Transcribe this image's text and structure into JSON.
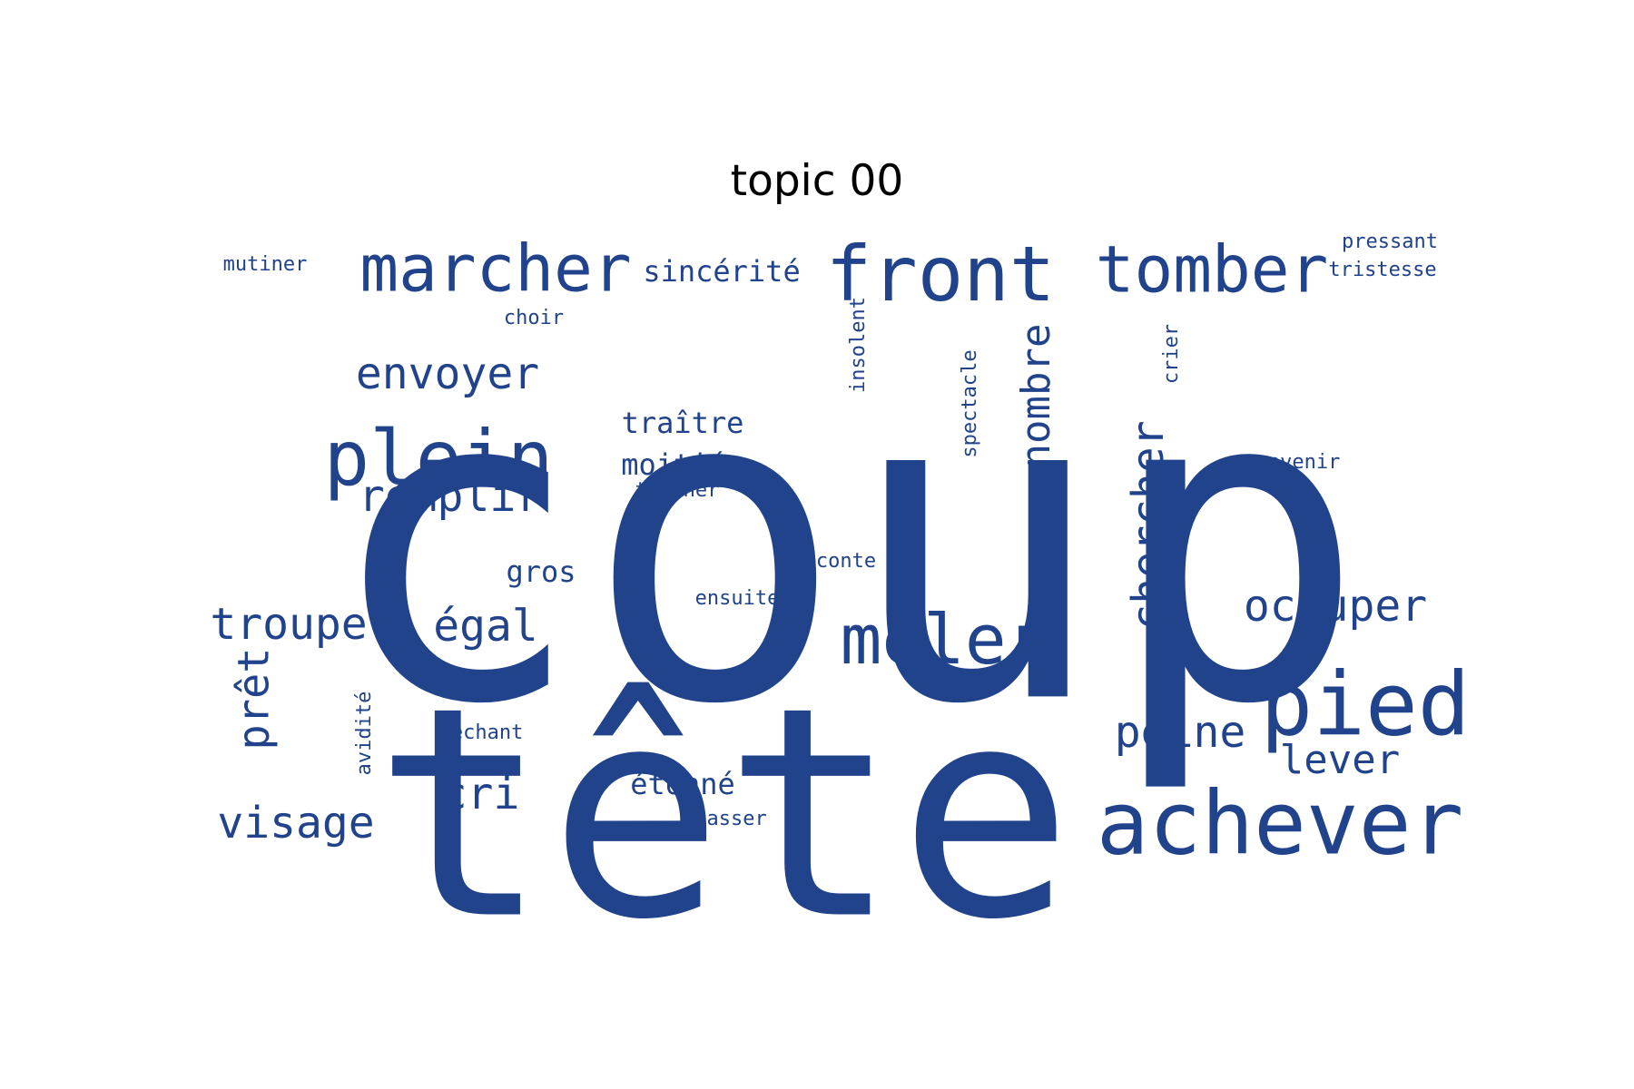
{
  "title": "topic 00",
  "colors": {
    "word": "#21438b",
    "background": "#ffffff",
    "title": "#000000"
  },
  "words": [
    {
      "key": "coup",
      "text": "coup",
      "weight": 1.0
    },
    {
      "key": "tete",
      "text": "tête",
      "weight": 0.92
    },
    {
      "key": "achever",
      "text": "achever",
      "weight": 0.3
    },
    {
      "key": "front",
      "text": "front",
      "weight": 0.27
    },
    {
      "key": "pied",
      "text": "pied",
      "weight": 0.27
    },
    {
      "key": "meler",
      "text": "mêler",
      "weight": 0.25
    },
    {
      "key": "plein",
      "text": "plein",
      "weight": 0.25
    },
    {
      "key": "marcher",
      "text": "marcher",
      "weight": 0.23
    },
    {
      "key": "tomber",
      "text": "tomber",
      "weight": 0.23
    },
    {
      "key": "chercher",
      "text": "chercher",
      "weight": 0.16
    },
    {
      "key": "nombre",
      "text": "nombre",
      "weight": 0.15
    },
    {
      "key": "envoyer",
      "text": "envoyer",
      "weight": 0.15
    },
    {
      "key": "remplir",
      "text": "remplir",
      "weight": 0.15
    },
    {
      "key": "occuper",
      "text": "occuper",
      "weight": 0.15
    },
    {
      "key": "peine",
      "text": "peine",
      "weight": 0.15
    },
    {
      "key": "egal",
      "text": "égal",
      "weight": 0.15
    },
    {
      "key": "troupe",
      "text": "troupe",
      "weight": 0.15
    },
    {
      "key": "visage",
      "text": "visage",
      "weight": 0.15
    },
    {
      "key": "pret",
      "text": "prêt",
      "weight": 0.14
    },
    {
      "key": "cri",
      "text": "cri",
      "weight": 0.14
    },
    {
      "key": "lever",
      "text": "lever",
      "weight": 0.14
    },
    {
      "key": "traitre",
      "text": "traître",
      "weight": 0.1
    },
    {
      "key": "moitie",
      "text": "moitié",
      "weight": 0.1
    },
    {
      "key": "gros",
      "text": "gros",
      "weight": 0.1
    },
    {
      "key": "etonne",
      "text": "étonné",
      "weight": 0.1
    },
    {
      "key": "sincerite",
      "text": "sincérité",
      "weight": 0.1
    },
    {
      "key": "pressant",
      "text": "pressant",
      "weight": 0.07
    },
    {
      "key": "tristesse",
      "text": "tristesse",
      "weight": 0.07
    },
    {
      "key": "mutiner",
      "text": "mutiner",
      "weight": 0.07
    },
    {
      "key": "choir",
      "text": "choir",
      "weight": 0.07
    },
    {
      "key": "insolent",
      "text": "insolent",
      "weight": 0.07
    },
    {
      "key": "spectacle",
      "text": "spectacle",
      "weight": 0.07
    },
    {
      "key": "crier",
      "text": "crier",
      "weight": 0.07
    },
    {
      "key": "revenir",
      "text": "revenir",
      "weight": 0.07
    },
    {
      "key": "trainer",
      "text": "trainer",
      "weight": 0.07
    },
    {
      "key": "conte",
      "text": "conte",
      "weight": 0.07
    },
    {
      "key": "ensuite",
      "text": "ensuite",
      "weight": 0.07
    },
    {
      "key": "mechant",
      "text": "méchant",
      "weight": 0.07
    },
    {
      "key": "avidite",
      "text": "avidité",
      "weight": 0.07
    },
    {
      "key": "passer",
      "text": "passer",
      "weight": 0.07
    }
  ]
}
